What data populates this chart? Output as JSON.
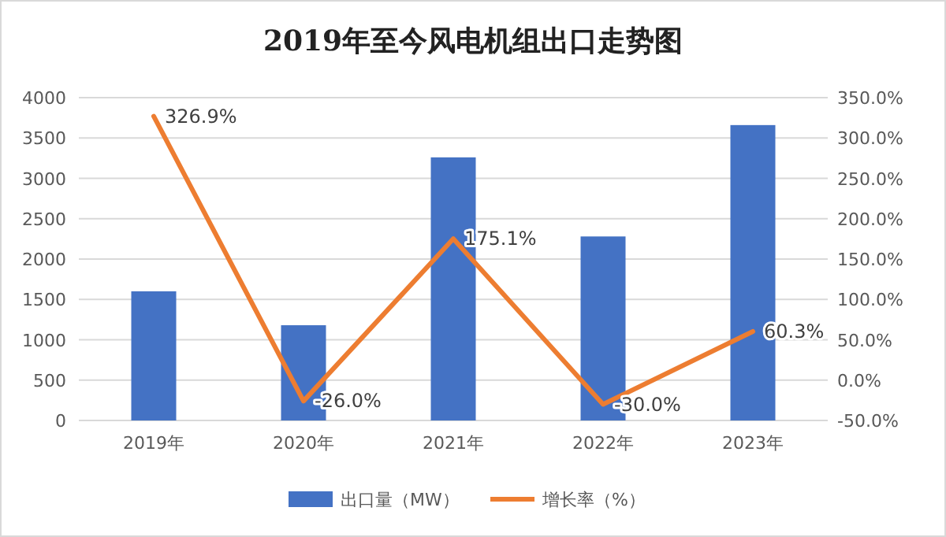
{
  "chart_data": {
    "type": "bar",
    "title": "2019年至今风电机组出口走势图",
    "categories": [
      "2019年",
      "2020年",
      "2021年",
      "2022年",
      "2023年"
    ],
    "series": [
      {
        "name": "出口量（MW）",
        "color": "#4472c4",
        "values": [
          1600,
          1180,
          3260,
          2280,
          3660
        ]
      },
      {
        "name": "增长率（%）",
        "color": "#ed7d31",
        "type": "line",
        "axis": "y2",
        "values": [
          326.9,
          -26.0,
          175.1,
          -30.0,
          60.3
        ],
        "value_labels": [
          "326.9%",
          "-26.0%",
          "175.1%",
          "-30.0%",
          "60.3%"
        ]
      }
    ],
    "ylim": [
      0,
      4000
    ],
    "yticks": [
      0,
      500,
      1000,
      1500,
      2000,
      2500,
      3000,
      3500,
      4000
    ],
    "y2lim": [
      -50,
      350
    ],
    "y2ticks": [
      {
        "value": -50,
        "label": "-50.0%"
      },
      {
        "value": 0,
        "label": "0.0%"
      },
      {
        "value": 50,
        "label": "50.0%"
      },
      {
        "value": 100,
        "label": "100.0%"
      },
      {
        "value": 150,
        "label": "150.0%"
      },
      {
        "value": 200,
        "label": "200.0%"
      },
      {
        "value": 250,
        "label": "250.0%"
      },
      {
        "value": 300,
        "label": "300.0%"
      },
      {
        "value": 350,
        "label": "350.0%"
      }
    ],
    "grid": "y",
    "legend": "bottom",
    "marker": "none"
  }
}
